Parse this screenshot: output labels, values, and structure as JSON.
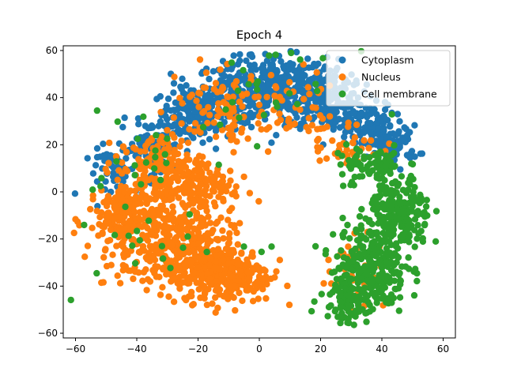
{
  "chart_data": {
    "type": "scatter",
    "title": "Epoch 4",
    "xlabel": "",
    "ylabel": "",
    "xlim": [
      -64,
      64
    ],
    "ylim": [
      -62,
      62
    ],
    "xticks": [
      -60,
      -40,
      -20,
      0,
      20,
      40,
      60
    ],
    "yticks": [
      -60,
      -40,
      -20,
      0,
      20,
      40,
      60
    ],
    "grid": false,
    "legend_position": "top-right",
    "series": [
      {
        "name": "Cytoplasm",
        "color": "#1f77b4",
        "clusters": [
          {
            "cx": -22,
            "cy": 33,
            "sx": 5,
            "sy": 6,
            "n": 160
          },
          {
            "cx": -8,
            "cy": 42,
            "sx": 6,
            "sy": 7,
            "n": 200
          },
          {
            "cx": 8,
            "cy": 45,
            "sx": 7,
            "sy": 6,
            "n": 220
          },
          {
            "cx": 22,
            "cy": 40,
            "sx": 6,
            "sy": 7,
            "n": 180
          },
          {
            "cx": 34,
            "cy": 28,
            "sx": 5,
            "sy": 5,
            "n": 120
          },
          {
            "cx": 44,
            "cy": 20,
            "sx": 4,
            "sy": 4,
            "n": 70
          },
          {
            "cx": -36,
            "cy": 18,
            "sx": 5,
            "sy": 6,
            "n": 90
          },
          {
            "cx": -46,
            "cy": 8,
            "sx": 5,
            "sy": 5,
            "n": 50
          }
        ]
      },
      {
        "name": "Nucleus",
        "color": "#ff7f0e",
        "clusters": [
          {
            "cx": -42,
            "cy": -12,
            "sx": 7,
            "sy": 9,
            "n": 260
          },
          {
            "cx": -25,
            "cy": -25,
            "sx": 8,
            "sy": 9,
            "n": 320
          },
          {
            "cx": -10,
            "cy": -35,
            "sx": 7,
            "sy": 6,
            "n": 260
          },
          {
            "cx": -32,
            "cy": 10,
            "sx": 7,
            "sy": 7,
            "n": 160
          },
          {
            "cx": -20,
            "cy": 2,
            "sx": 6,
            "sy": 6,
            "n": 120
          },
          {
            "cx": -14,
            "cy": 35,
            "sx": 8,
            "sy": 10,
            "n": 80
          },
          {
            "cx": 8,
            "cy": 35,
            "sx": 10,
            "sy": 8,
            "n": 60
          },
          {
            "cx": 28,
            "cy": 20,
            "sx": 6,
            "sy": 6,
            "n": 40
          },
          {
            "cx": 32,
            "cy": -35,
            "sx": 5,
            "sy": 8,
            "n": 35
          }
        ]
      },
      {
        "name": "Cell membrane",
        "color": "#2ca02c",
        "clusters": [
          {
            "cx": 36,
            "cy": -32,
            "sx": 6,
            "sy": 10,
            "n": 260
          },
          {
            "cx": 46,
            "cy": -10,
            "sx": 5,
            "sy": 8,
            "n": 200
          },
          {
            "cx": 36,
            "cy": 10,
            "sx": 6,
            "sy": 5,
            "n": 80
          },
          {
            "cx": 28,
            "cy": -45,
            "sx": 4,
            "sy": 5,
            "n": 80
          },
          {
            "cx": 5,
            "cy": 45,
            "sx": 12,
            "sy": 7,
            "n": 25
          },
          {
            "cx": -30,
            "cy": -15,
            "sx": 15,
            "sy": 18,
            "n": 30
          },
          {
            "cx": -40,
            "cy": 15,
            "sx": 8,
            "sy": 10,
            "n": 15
          }
        ]
      }
    ]
  }
}
